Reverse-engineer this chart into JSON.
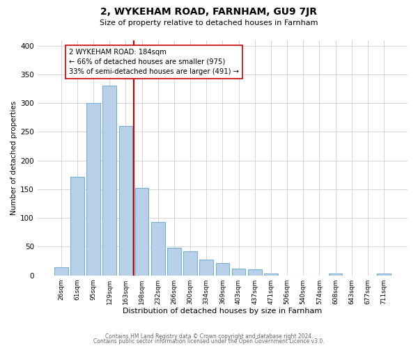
{
  "title": "2, WYKEHAM ROAD, FARNHAM, GU9 7JR",
  "subtitle": "Size of property relative to detached houses in Farnham",
  "xlabel": "Distribution of detached houses by size in Farnham",
  "ylabel": "Number of detached properties",
  "bar_labels": [
    "26sqm",
    "61sqm",
    "95sqm",
    "129sqm",
    "163sqm",
    "198sqm",
    "232sqm",
    "266sqm",
    "300sqm",
    "334sqm",
    "369sqm",
    "403sqm",
    "437sqm",
    "471sqm",
    "506sqm",
    "540sqm",
    "574sqm",
    "608sqm",
    "643sqm",
    "677sqm",
    "711sqm"
  ],
  "bar_values": [
    14,
    172,
    300,
    330,
    260,
    152,
    93,
    48,
    42,
    27,
    22,
    12,
    10,
    3,
    0,
    0,
    0,
    3,
    0,
    0,
    3
  ],
  "bar_color": "#b8d0e8",
  "bar_edge_color": "#7aafd4",
  "vline_x": 4.5,
  "vline_color": "#cc0000",
  "annotation_title": "2 WYKEHAM ROAD: 184sqm",
  "annotation_line1": "← 66% of detached houses are smaller (975)",
  "annotation_line2": "33% of semi-detached houses are larger (491) →",
  "annotation_box_color": "#ffffff",
  "annotation_box_edge": "#cc0000",
  "ylim": [
    0,
    410
  ],
  "footer1": "Contains HM Land Registry data © Crown copyright and database right 2024.",
  "footer2": "Contains public sector information licensed under the Open Government Licence v3.0.",
  "background_color": "#ffffff",
  "grid_color": "#d0d0d0"
}
